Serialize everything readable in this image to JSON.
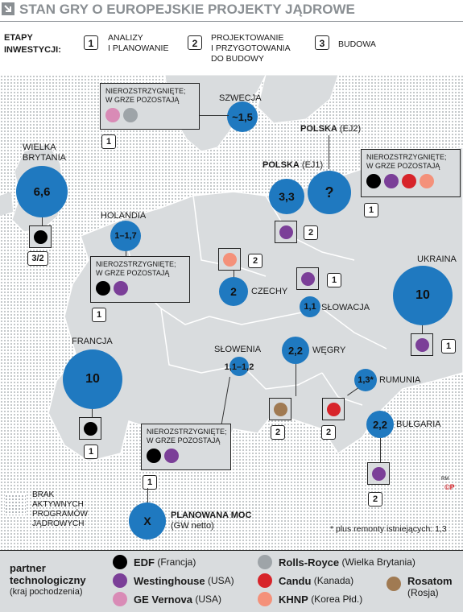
{
  "title": "STAN GRY O EUROPEJSKIE PROJEKTY JĄDROWE",
  "stages": {
    "heading": [
      "ETAPY",
      "INWESTYCJI:"
    ],
    "items": [
      {
        "num": "1",
        "lines": [
          "ANALIZY",
          "I PLANOWANIE"
        ]
      },
      {
        "num": "2",
        "lines": [
          "PROJEKTOWANIE",
          "I PRZYGOTOWANIA",
          "DO BUDOWY"
        ]
      },
      {
        "num": "3",
        "lines": [
          "BUDOWA"
        ]
      }
    ]
  },
  "unresolved_text": [
    "NIEROZSTRZYGNIĘTE;",
    "W GRZE POZOSTAJĄ"
  ],
  "countries": {
    "uk": {
      "name": [
        "WIELKA",
        "BRYTANIA"
      ],
      "value": "6,6",
      "stage": "3/2",
      "partners": [
        "EDF"
      ]
    },
    "sweden": {
      "name": "SZWECJA",
      "value": "~1,5",
      "stage": "1",
      "unresolved": [
        "GE Vernova",
        "Rolls-Royce"
      ]
    },
    "netherlands": {
      "name": "HOLANDIA",
      "value": "1–1,7",
      "stage": "1",
      "unresolved": [
        "EDF",
        "Westinghouse"
      ]
    },
    "poland_ej1": {
      "name": "POLSKA",
      "suffix": "(EJ1)",
      "value": "3,3",
      "stage": "2",
      "partners": [
        "Westinghouse"
      ]
    },
    "poland_ej2": {
      "name": "POLSKA",
      "suffix": "(EJ2)",
      "value": "?",
      "stage": "1",
      "unresolved": [
        "EDF",
        "Westinghouse",
        "Candu",
        "KHNP"
      ]
    },
    "czechia": {
      "name": "CZECHY",
      "value": "2",
      "stage": "2",
      "partners": [
        "KHNP"
      ]
    },
    "slovakia": {
      "name": "SŁOWACJA",
      "value": "1,1",
      "stage": "1",
      "partners": [
        "Westinghouse"
      ]
    },
    "ukraine": {
      "name": "UKRAINA",
      "value": "10",
      "stage": "1",
      "partners": [
        "Westinghouse"
      ]
    },
    "france": {
      "name": "FRANCJA",
      "value": "10",
      "stage": "1",
      "partners": [
        "EDF"
      ]
    },
    "slovenia": {
      "name": "SŁOWENIA",
      "value": "1,1–1,2",
      "stage": "1",
      "unresolved": [
        "EDF",
        "Westinghouse"
      ]
    },
    "hungary": {
      "name": "WĘGRY",
      "value": "2,2",
      "stage": "2",
      "partners": [
        "Rosatom"
      ]
    },
    "romania": {
      "name": "RUMUNIA",
      "value": "1,3*",
      "stage": "2",
      "partners": [
        "Candu"
      ]
    },
    "bulgaria": {
      "name": "BUŁGARIA",
      "value": "2,2",
      "stage": "2",
      "partners": [
        "Westinghouse"
      ]
    }
  },
  "map_legend": {
    "no_programs": [
      "BRAK",
      "AKTYWNYCH",
      "PROGRAMÓW",
      "JĄDROWYCH"
    ],
    "planned_symbol": "X",
    "planned_label": "PLANOWANA MOC",
    "planned_unit": "(GW netto)",
    "footnote": "* plus remonty istniejących: 1,3",
    "credit_rm": "RM",
    "credit_cp": "©P"
  },
  "partner_legend": {
    "heading": [
      "partner",
      "technologiczny"
    ],
    "subheading": "(kraj pochodzenia)",
    "items": [
      {
        "name": "EDF",
        "origin": "(Francja)",
        "color": "#000000"
      },
      {
        "name": "Westinghouse",
        "origin": "(USA)",
        "color": "#7b3f98"
      },
      {
        "name": "GE Vernova",
        "origin": "(USA)",
        "color": "#d98bb6"
      },
      {
        "name": "Rolls-Royce",
        "origin": "(Wielka Brytania)",
        "color": "#9ea4a8"
      },
      {
        "name": "Candu",
        "origin": "(Kanada)",
        "color": "#d7242a"
      },
      {
        "name": "KHNP",
        "origin": "(Korea Płd.)",
        "color": "#f4917a"
      },
      {
        "name": "Rosatom",
        "origin": "(Rosja)",
        "color": "#a07a52"
      }
    ]
  },
  "colors": {
    "bubble": "#1f79c0",
    "land": "#d9dcde",
    "box": "#d9dcde"
  }
}
